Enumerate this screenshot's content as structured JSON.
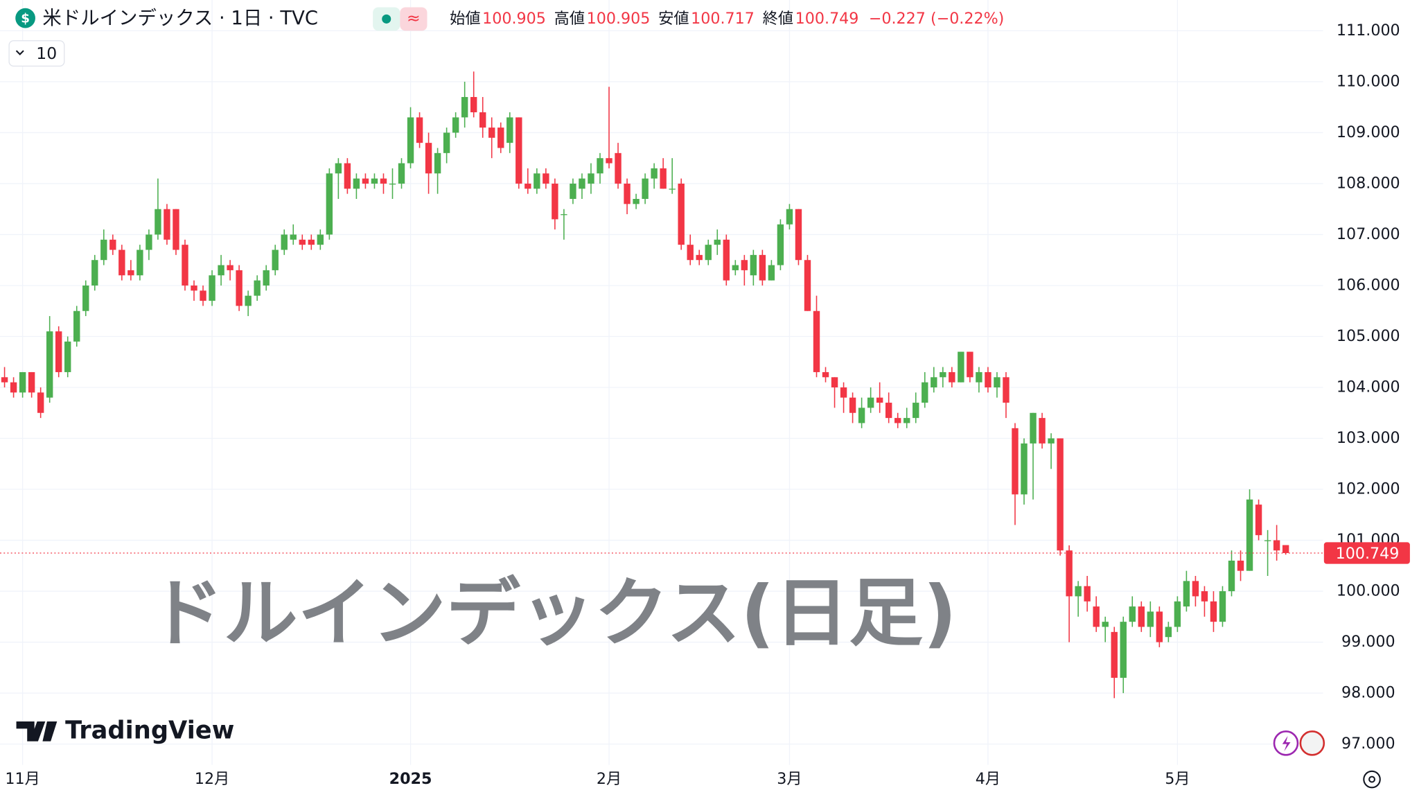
{
  "chart_data": {
    "type": "candlestick",
    "header": {
      "title": "米ドルインデックス · 1日 · TVC",
      "labels": [
        "始値",
        "高値",
        "安値",
        "終値"
      ],
      "values": [
        100.905,
        100.905,
        100.717,
        100.749
      ],
      "change": "−0.227 (−0.22%)"
    },
    "indicator_count": 10,
    "watermark": "ドルインデックス(日足)",
    "brand": "TradingView",
    "last_price": 100.749,
    "up_color": "#4caf50",
    "down_color": "#f23645",
    "grid": true,
    "ylim": [
      97,
      111
    ],
    "yticks": [
      {
        "value": 111,
        "label": "111.000"
      },
      {
        "value": 110,
        "label": "110.000"
      },
      {
        "value": 109,
        "label": "109.000"
      },
      {
        "value": 108,
        "label": "108.000"
      },
      {
        "value": 107,
        "label": "107.000"
      },
      {
        "value": 106,
        "label": "106.000"
      },
      {
        "value": 105,
        "label": "105.000"
      },
      {
        "value": 104,
        "label": "104.000"
      },
      {
        "value": 103,
        "label": "103.000"
      },
      {
        "value": 102,
        "label": "102.000"
      },
      {
        "value": 101,
        "label": "101.000"
      },
      {
        "value": 100,
        "label": "100.000"
      },
      {
        "value": 99,
        "label": "99.000"
      },
      {
        "value": 98,
        "label": "98.000"
      },
      {
        "value": 97,
        "label": "97.000"
      }
    ],
    "xticks": [
      {
        "value": 2,
        "label": "11月"
      },
      {
        "value": 23,
        "label": "12月"
      },
      {
        "value": 45,
        "label": "2025",
        "bold": true
      },
      {
        "value": 67,
        "label": "2月"
      },
      {
        "value": 87,
        "label": "3月"
      },
      {
        "value": 109,
        "label": "4月"
      },
      {
        "value": 130,
        "label": "5月"
      }
    ],
    "ohlc": [
      [
        104.2,
        104.4,
        104.0,
        104.1
      ],
      [
        104.1,
        104.2,
        103.8,
        103.9
      ],
      [
        103.9,
        104.3,
        103.8,
        104.3
      ],
      [
        104.3,
        104.3,
        103.8,
        103.9
      ],
      [
        103.9,
        104.0,
        103.4,
        103.5
      ],
      [
        103.8,
        105.4,
        103.7,
        105.1
      ],
      [
        105.1,
        105.2,
        104.2,
        104.3
      ],
      [
        104.3,
        105.0,
        104.2,
        104.9
      ],
      [
        104.9,
        105.6,
        104.8,
        105.5
      ],
      [
        105.5,
        106.1,
        105.4,
        106.0
      ],
      [
        106.0,
        106.6,
        105.9,
        106.5
      ],
      [
        106.5,
        107.1,
        106.4,
        106.9
      ],
      [
        106.9,
        107.0,
        106.6,
        106.7
      ],
      [
        106.7,
        106.8,
        106.1,
        106.2
      ],
      [
        106.3,
        106.5,
        106.1,
        106.2
      ],
      [
        106.2,
        106.8,
        106.1,
        106.7
      ],
      [
        106.7,
        107.1,
        106.5,
        107.0
      ],
      [
        107.0,
        108.1,
        106.9,
        107.5
      ],
      [
        107.5,
        107.6,
        106.8,
        106.9
      ],
      [
        107.5,
        107.5,
        106.6,
        106.7
      ],
      [
        106.8,
        106.9,
        105.9,
        106.0
      ],
      [
        106.0,
        106.1,
        105.7,
        105.9
      ],
      [
        105.9,
        106.0,
        105.6,
        105.7
      ],
      [
        105.7,
        106.3,
        105.6,
        106.2
      ],
      [
        106.2,
        106.6,
        106.0,
        106.4
      ],
      [
        106.4,
        106.5,
        106.1,
        106.3
      ],
      [
        106.3,
        106.4,
        105.5,
        105.6
      ],
      [
        105.6,
        105.9,
        105.4,
        105.8
      ],
      [
        105.8,
        106.2,
        105.7,
        106.1
      ],
      [
        106.0,
        106.4,
        105.9,
        106.3
      ],
      [
        106.3,
        106.8,
        106.2,
        106.7
      ],
      [
        106.7,
        107.1,
        106.6,
        107.0
      ],
      [
        106.9,
        107.2,
        106.8,
        107.0
      ],
      [
        106.9,
        107.0,
        106.7,
        106.8
      ],
      [
        106.9,
        107.0,
        106.7,
        106.8
      ],
      [
        106.8,
        107.1,
        106.7,
        107.0
      ],
      [
        107.0,
        108.3,
        106.9,
        108.2
      ],
      [
        108.2,
        108.5,
        107.7,
        108.4
      ],
      [
        108.4,
        108.5,
        107.8,
        107.9
      ],
      [
        107.9,
        108.2,
        107.7,
        108.1
      ],
      [
        108.1,
        108.2,
        107.9,
        108.0
      ],
      [
        108.0,
        108.2,
        107.9,
        108.1
      ],
      [
        108.1,
        108.2,
        107.8,
        108.0
      ],
      [
        108.0,
        108.3,
        107.7,
        108.0
      ],
      [
        108.0,
        108.5,
        107.9,
        108.4
      ],
      [
        108.4,
        109.5,
        108.3,
        109.3
      ],
      [
        109.3,
        109.4,
        108.7,
        108.8
      ],
      [
        108.8,
        109.0,
        107.8,
        108.2
      ],
      [
        108.2,
        108.7,
        107.8,
        108.6
      ],
      [
        108.6,
        109.1,
        108.4,
        109.0
      ],
      [
        109.0,
        109.4,
        108.9,
        109.3
      ],
      [
        109.3,
        110.0,
        109.1,
        109.7
      ],
      [
        109.7,
        110.2,
        109.3,
        109.4
      ],
      [
        109.4,
        109.7,
        108.9,
        109.1
      ],
      [
        109.1,
        109.3,
        108.5,
        108.9
      ],
      [
        109.1,
        109.2,
        108.6,
        108.7
      ],
      [
        108.8,
        109.4,
        108.6,
        109.3
      ],
      [
        109.3,
        109.3,
        107.9,
        108.0
      ],
      [
        108.0,
        108.3,
        107.8,
        107.9
      ],
      [
        107.9,
        108.3,
        107.8,
        108.2
      ],
      [
        108.2,
        108.3,
        107.9,
        108.0
      ],
      [
        108.0,
        108.1,
        107.1,
        107.3
      ],
      [
        107.4,
        107.5,
        106.9,
        107.4
      ],
      [
        107.7,
        108.1,
        107.6,
        108.0
      ],
      [
        107.9,
        108.2,
        107.7,
        108.1
      ],
      [
        108.0,
        108.4,
        107.8,
        108.2
      ],
      [
        108.2,
        108.6,
        108.0,
        108.5
      ],
      [
        108.5,
        109.9,
        108.3,
        108.4
      ],
      [
        108.6,
        108.8,
        107.9,
        108.0
      ],
      [
        108.0,
        108.1,
        107.4,
        107.6
      ],
      [
        107.6,
        107.8,
        107.5,
        107.7
      ],
      [
        107.7,
        108.2,
        107.6,
        108.1
      ],
      [
        108.1,
        108.4,
        107.9,
        108.3
      ],
      [
        108.3,
        108.5,
        107.9,
        107.9
      ],
      [
        107.9,
        108.5,
        107.8,
        107.9
      ],
      [
        108.0,
        108.1,
        106.7,
        106.8
      ],
      [
        106.8,
        107.0,
        106.4,
        106.5
      ],
      [
        106.6,
        106.7,
        106.4,
        106.5
      ],
      [
        106.5,
        106.9,
        106.4,
        106.8
      ],
      [
        106.8,
        107.1,
        106.6,
        106.9
      ],
      [
        106.9,
        107.0,
        106.0,
        106.1
      ],
      [
        106.3,
        106.5,
        106.2,
        106.4
      ],
      [
        106.5,
        106.6,
        106.0,
        106.3
      ],
      [
        106.2,
        106.7,
        106.0,
        106.6
      ],
      [
        106.6,
        106.7,
        106.0,
        106.1
      ],
      [
        106.1,
        106.5,
        106.1,
        106.4
      ],
      [
        106.4,
        107.3,
        106.3,
        107.2
      ],
      [
        107.2,
        107.6,
        107.1,
        107.5
      ],
      [
        107.5,
        107.5,
        106.4,
        106.5
      ],
      [
        106.5,
        106.6,
        105.5,
        105.5
      ],
      [
        105.5,
        105.8,
        104.2,
        104.3
      ],
      [
        104.3,
        104.4,
        104.1,
        104.2
      ],
      [
        104.2,
        104.2,
        103.6,
        104.0
      ],
      [
        104.0,
        104.1,
        103.5,
        103.8
      ],
      [
        103.8,
        103.9,
        103.3,
        103.5
      ],
      [
        103.3,
        103.8,
        103.2,
        103.6
      ],
      [
        103.6,
        104.0,
        103.5,
        103.8
      ],
      [
        103.8,
        104.1,
        103.5,
        103.7
      ],
      [
        103.7,
        103.9,
        103.3,
        103.4
      ],
      [
        103.4,
        103.5,
        103.2,
        103.3
      ],
      [
        103.3,
        103.6,
        103.2,
        103.4
      ],
      [
        103.4,
        103.9,
        103.3,
        103.7
      ],
      [
        103.7,
        104.3,
        103.6,
        104.1
      ],
      [
        104.0,
        104.4,
        103.9,
        104.2
      ],
      [
        104.2,
        104.4,
        104.0,
        104.3
      ],
      [
        104.3,
        104.4,
        104.0,
        104.1
      ],
      [
        104.1,
        104.7,
        104.1,
        104.7
      ],
      [
        104.7,
        104.7,
        104.1,
        104.2
      ],
      [
        104.1,
        104.4,
        103.9,
        104.3
      ],
      [
        104.3,
        104.4,
        103.9,
        104.0
      ],
      [
        104.0,
        104.3,
        103.8,
        104.2
      ],
      [
        104.2,
        104.3,
        103.4,
        103.7
      ],
      [
        103.2,
        103.3,
        101.3,
        101.9
      ],
      [
        101.9,
        103.0,
        101.7,
        102.9
      ],
      [
        102.9,
        103.5,
        101.8,
        103.5
      ],
      [
        103.4,
        103.5,
        102.8,
        102.9
      ],
      [
        102.9,
        103.1,
        102.4,
        103.0
      ],
      [
        103.0,
        103.0,
        100.7,
        100.8
      ],
      [
        100.8,
        100.9,
        99.0,
        99.9
      ],
      [
        99.9,
        100.2,
        99.5,
        100.1
      ],
      [
        100.1,
        100.3,
        99.6,
        99.8
      ],
      [
        99.7,
        99.9,
        99.2,
        99.3
      ],
      [
        99.3,
        99.5,
        99.0,
        99.4
      ],
      [
        99.2,
        99.3,
        97.9,
        98.3
      ],
      [
        98.3,
        99.5,
        98.0,
        99.4
      ],
      [
        99.4,
        99.9,
        99.3,
        99.7
      ],
      [
        99.7,
        99.8,
        99.2,
        99.3
      ],
      [
        99.3,
        99.8,
        99.1,
        99.6
      ],
      [
        99.6,
        99.7,
        98.9,
        99.0
      ],
      [
        99.1,
        99.4,
        99.0,
        99.3
      ],
      [
        99.3,
        99.9,
        99.2,
        99.8
      ],
      [
        99.7,
        100.4,
        99.6,
        100.2
      ],
      [
        100.2,
        100.3,
        99.7,
        99.9
      ],
      [
        100.0,
        100.1,
        99.5,
        99.8
      ],
      [
        99.8,
        100.0,
        99.2,
        99.4
      ],
      [
        99.4,
        100.1,
        99.3,
        100.0
      ],
      [
        100.0,
        100.8,
        99.9,
        100.6
      ],
      [
        100.6,
        100.8,
        100.2,
        100.4
      ],
      [
        100.4,
        102.0,
        100.4,
        101.8
      ],
      [
        101.7,
        101.8,
        101.0,
        101.1
      ],
      [
        101.0,
        101.2,
        100.3,
        101.0
      ],
      [
        101.0,
        101.3,
        100.6,
        100.8
      ],
      [
        100.905,
        100.905,
        100.717,
        100.749
      ]
    ]
  }
}
